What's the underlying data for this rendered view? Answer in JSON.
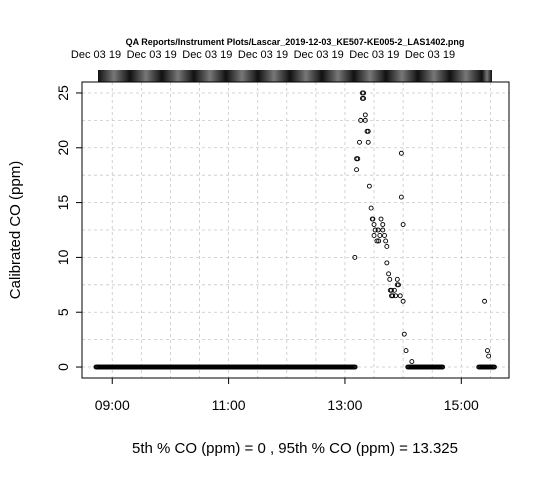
{
  "chart_data": {
    "type": "scatter",
    "title": "QA Reports/Instrument Plots/Lascar_2019-12-03_KE507-KE005-2_LAS1402.png",
    "top_tick_labels": [
      "Dec 03 19",
      "Dec 03 19",
      "Dec 03 19",
      "Dec 03 19",
      "Dec 03 19",
      "Dec 03 19",
      "Dec 03 19"
    ],
    "ylabel": "Calibrated CO (ppm)",
    "xlabel": "5th % CO (ppm) =  0 , 95th % CO (ppm)  =  13.325",
    "x_axis": {
      "min": 8.48,
      "max": 15.82,
      "ticks": [
        {
          "value": 9,
          "label": "09:00"
        },
        {
          "value": 11,
          "label": "11:00"
        },
        {
          "value": 13,
          "label": "13:00"
        },
        {
          "value": 15,
          "label": "15:00"
        }
      ]
    },
    "y_axis": {
      "min": -1.0,
      "max": 26.0,
      "ticks": [
        {
          "value": 0,
          "label": "0"
        },
        {
          "value": 5,
          "label": "5"
        },
        {
          "value": 10,
          "label": "10"
        },
        {
          "value": 15,
          "label": "15"
        },
        {
          "value": 20,
          "label": "20"
        },
        {
          "value": 25,
          "label": "25"
        }
      ]
    },
    "grid": true,
    "series": [
      {
        "zero_runs": [
          [
            8.72,
            13.18
          ],
          [
            14.08,
            14.68
          ],
          [
            15.3,
            15.58
          ]
        ],
        "points": [
          [
            13.17,
            10.0
          ],
          [
            13.2,
            18.0
          ],
          [
            13.2,
            19.0
          ],
          [
            13.22,
            19.0
          ],
          [
            13.25,
            20.5
          ],
          [
            13.27,
            22.5
          ],
          [
            13.3,
            24.5
          ],
          [
            13.3,
            25.0
          ],
          [
            13.32,
            24.5
          ],
          [
            13.32,
            25.0
          ],
          [
            13.35,
            22.5
          ],
          [
            13.35,
            23.0
          ],
          [
            13.38,
            21.5
          ],
          [
            13.4,
            21.5
          ],
          [
            13.4,
            20.5
          ],
          [
            13.42,
            16.5
          ],
          [
            13.45,
            14.5
          ],
          [
            13.47,
            13.5
          ],
          [
            13.48,
            13.5
          ],
          [
            13.5,
            13.0
          ],
          [
            13.5,
            12.0
          ],
          [
            13.52,
            12.5
          ],
          [
            13.55,
            11.5
          ],
          [
            13.57,
            12.5
          ],
          [
            13.58,
            11.5
          ],
          [
            13.6,
            12.0
          ],
          [
            13.62,
            13.5
          ],
          [
            13.65,
            12.5
          ],
          [
            13.65,
            13.0
          ],
          [
            13.68,
            12.0
          ],
          [
            13.7,
            11.5
          ],
          [
            13.72,
            11.0
          ],
          [
            13.72,
            9.5
          ],
          [
            13.75,
            8.5
          ],
          [
            13.77,
            8.0
          ],
          [
            13.78,
            7.0
          ],
          [
            13.8,
            6.5
          ],
          [
            13.8,
            7.0
          ],
          [
            13.82,
            6.5
          ],
          [
            13.85,
            7.0
          ],
          [
            13.87,
            6.5
          ],
          [
            13.9,
            7.5
          ],
          [
            13.9,
            8.0
          ],
          [
            13.92,
            7.5
          ],
          [
            13.95,
            6.5
          ],
          [
            13.97,
            19.5
          ],
          [
            13.97,
            15.5
          ],
          [
            14.0,
            13.0
          ],
          [
            14.0,
            6.0
          ],
          [
            14.02,
            3.0
          ],
          [
            14.05,
            1.5
          ],
          [
            14.15,
            0.5
          ],
          [
            15.4,
            6.0
          ],
          [
            15.45,
            1.5
          ],
          [
            15.47,
            1.0
          ]
        ]
      }
    ]
  }
}
